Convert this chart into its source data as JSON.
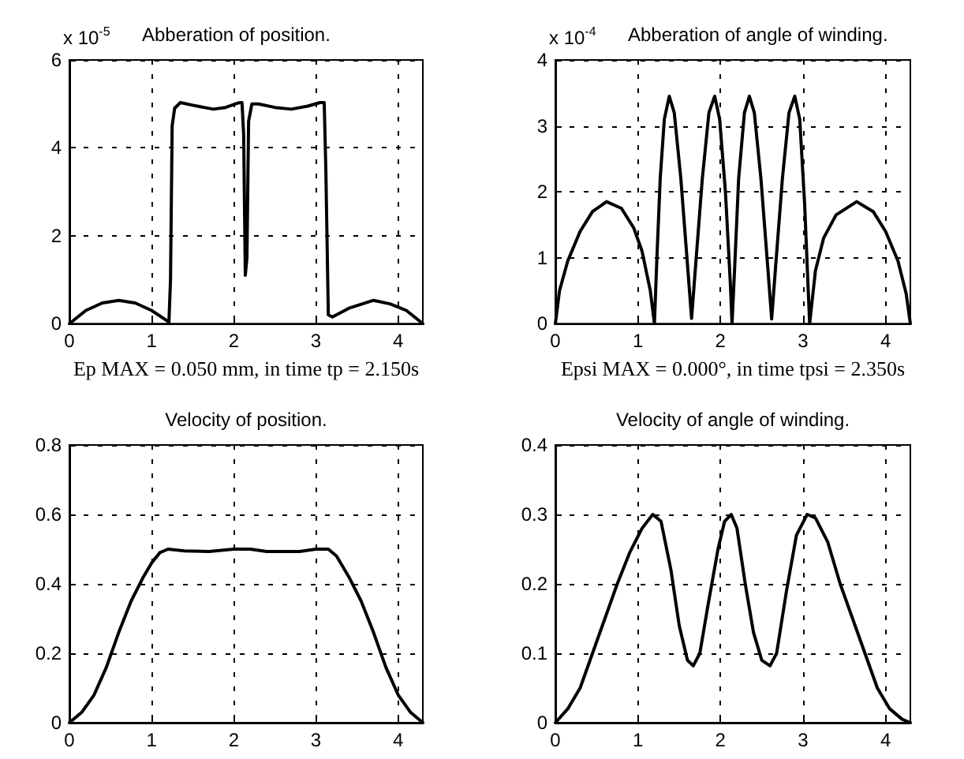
{
  "chart_data": [
    {
      "type": "line",
      "title": "Abberation of position.",
      "xlabel": "Ep MAX = 0.050 mm, in time tp = 2.150s",
      "annotations": [
        "x 10$^{-5}$"
      ],
      "color": "#000000",
      "grid": true,
      "marker": "none",
      "line_style": "solid",
      "xlim": [
        0,
        4.3
      ],
      "xticks": [
        0,
        1,
        2,
        3,
        4
      ],
      "ylim": [
        0,
        6
      ],
      "yticks": [
        0,
        2,
        4,
        6
      ],
      "x": [
        0,
        0.2,
        0.4,
        0.6,
        0.8,
        1.0,
        1.2,
        1.21,
        1.23,
        1.25,
        1.28,
        1.35,
        1.5,
        1.75,
        1.9,
        2.05,
        2.1,
        2.12,
        2.14,
        2.16,
        2.18,
        2.22,
        2.3,
        2.5,
        2.7,
        2.9,
        3.05,
        3.1,
        3.12,
        3.15,
        3.2,
        3.4,
        3.7,
        3.9,
        4.1,
        4.3
      ],
      "values": [
        0,
        0.3,
        0.47,
        0.53,
        0.47,
        0.3,
        0.05,
        0,
        1.0,
        4.5,
        4.9,
        5.03,
        4.97,
        4.88,
        4.92,
        5.02,
        5.03,
        4.3,
        1.1,
        1.5,
        4.6,
        5.0,
        5.0,
        4.92,
        4.88,
        4.95,
        5.03,
        5.03,
        3.5,
        0.2,
        0.15,
        0.35,
        0.53,
        0.45,
        0.3,
        0
      ]
    },
    {
      "type": "line",
      "title": "Abberation of angle of winding.",
      "xlabel": "Epsi MAX = 0.000°, in time tpsi = 2.350s",
      "annotations": [
        "x 10$^{-4}$"
      ],
      "color": "#000000",
      "grid": true,
      "marker": "none",
      "line_style": "solid",
      "xlim": [
        0,
        4.3
      ],
      "xticks": [
        0,
        1,
        2,
        3,
        4
      ],
      "ylim": [
        0,
        4
      ],
      "yticks": [
        0,
        1,
        2,
        3,
        4
      ],
      "x": [
        0,
        0.05,
        0.15,
        0.3,
        0.45,
        0.62,
        0.8,
        0.95,
        1.05,
        1.15,
        1.2,
        1.23,
        1.27,
        1.32,
        1.38,
        1.44,
        1.52,
        1.6,
        1.65,
        1.7,
        1.78,
        1.86,
        1.93,
        1.99,
        2.06,
        2.12,
        2.14,
        2.17,
        2.22,
        2.29,
        2.35,
        2.41,
        2.49,
        2.57,
        2.62,
        2.67,
        2.75,
        2.83,
        2.9,
        2.96,
        3.02,
        3.07,
        3.08,
        3.15,
        3.25,
        3.4,
        3.65,
        3.85,
        4.0,
        4.15,
        4.25,
        4.3
      ],
      "values": [
        0,
        0.5,
        0.95,
        1.4,
        1.7,
        1.85,
        1.75,
        1.45,
        1.1,
        0.5,
        0,
        1.0,
        2.2,
        3.1,
        3.45,
        3.2,
        2.2,
        0.9,
        0.08,
        0.9,
        2.2,
        3.2,
        3.45,
        3.1,
        2.0,
        0.6,
        0,
        0.8,
        2.2,
        3.2,
        3.45,
        3.2,
        2.2,
        0.9,
        0.07,
        0.9,
        2.2,
        3.2,
        3.45,
        3.1,
        1.8,
        0.3,
        0,
        0.8,
        1.3,
        1.65,
        1.85,
        1.7,
        1.4,
        0.95,
        0.45,
        0
      ]
    },
    {
      "type": "line",
      "title": "Velocity of position.",
      "color": "#000000",
      "grid": true,
      "marker": "none",
      "line_style": "solid",
      "xlim": [
        0,
        4.3
      ],
      "xticks": [
        0,
        1,
        2,
        3,
        4
      ],
      "ylim": [
        0,
        0.8
      ],
      "yticks": [
        0,
        0.2,
        0.4,
        0.6,
        0.8
      ],
      "x": [
        0,
        0.15,
        0.3,
        0.45,
        0.6,
        0.75,
        0.9,
        1.0,
        1.1,
        1.2,
        1.4,
        1.7,
        2.0,
        2.2,
        2.4,
        2.8,
        3.0,
        3.15,
        3.25,
        3.4,
        3.55,
        3.7,
        3.85,
        4.0,
        4.15,
        4.3
      ],
      "values": [
        0,
        0.03,
        0.08,
        0.16,
        0.26,
        0.35,
        0.42,
        0.46,
        0.49,
        0.5,
        0.495,
        0.493,
        0.5,
        0.5,
        0.493,
        0.493,
        0.5,
        0.5,
        0.48,
        0.42,
        0.35,
        0.26,
        0.16,
        0.08,
        0.03,
        0
      ]
    },
    {
      "type": "line",
      "title": "Velocity of angle of winding.",
      "color": "#000000",
      "grid": true,
      "marker": "none",
      "line_style": "solid",
      "xlim": [
        0,
        4.3
      ],
      "xticks": [
        0,
        1,
        2,
        3,
        4
      ],
      "ylim": [
        0,
        0.4
      ],
      "yticks": [
        0,
        0.1,
        0.2,
        0.3,
        0.4
      ],
      "x": [
        0,
        0.15,
        0.3,
        0.45,
        0.6,
        0.75,
        0.9,
        1.05,
        1.18,
        1.28,
        1.4,
        1.5,
        1.6,
        1.67,
        1.75,
        1.85,
        1.97,
        2.05,
        2.13,
        2.2,
        2.3,
        2.4,
        2.5,
        2.6,
        2.68,
        2.8,
        2.92,
        3.05,
        3.15,
        3.3,
        3.45,
        3.6,
        3.75,
        3.9,
        4.05,
        4.2,
        4.3
      ],
      "values": [
        0,
        0.02,
        0.05,
        0.1,
        0.15,
        0.2,
        0.245,
        0.28,
        0.3,
        0.29,
        0.22,
        0.14,
        0.09,
        0.082,
        0.1,
        0.17,
        0.25,
        0.29,
        0.3,
        0.28,
        0.2,
        0.13,
        0.09,
        0.082,
        0.1,
        0.19,
        0.27,
        0.3,
        0.295,
        0.26,
        0.2,
        0.15,
        0.1,
        0.05,
        0.02,
        0.005,
        0
      ]
    }
  ]
}
